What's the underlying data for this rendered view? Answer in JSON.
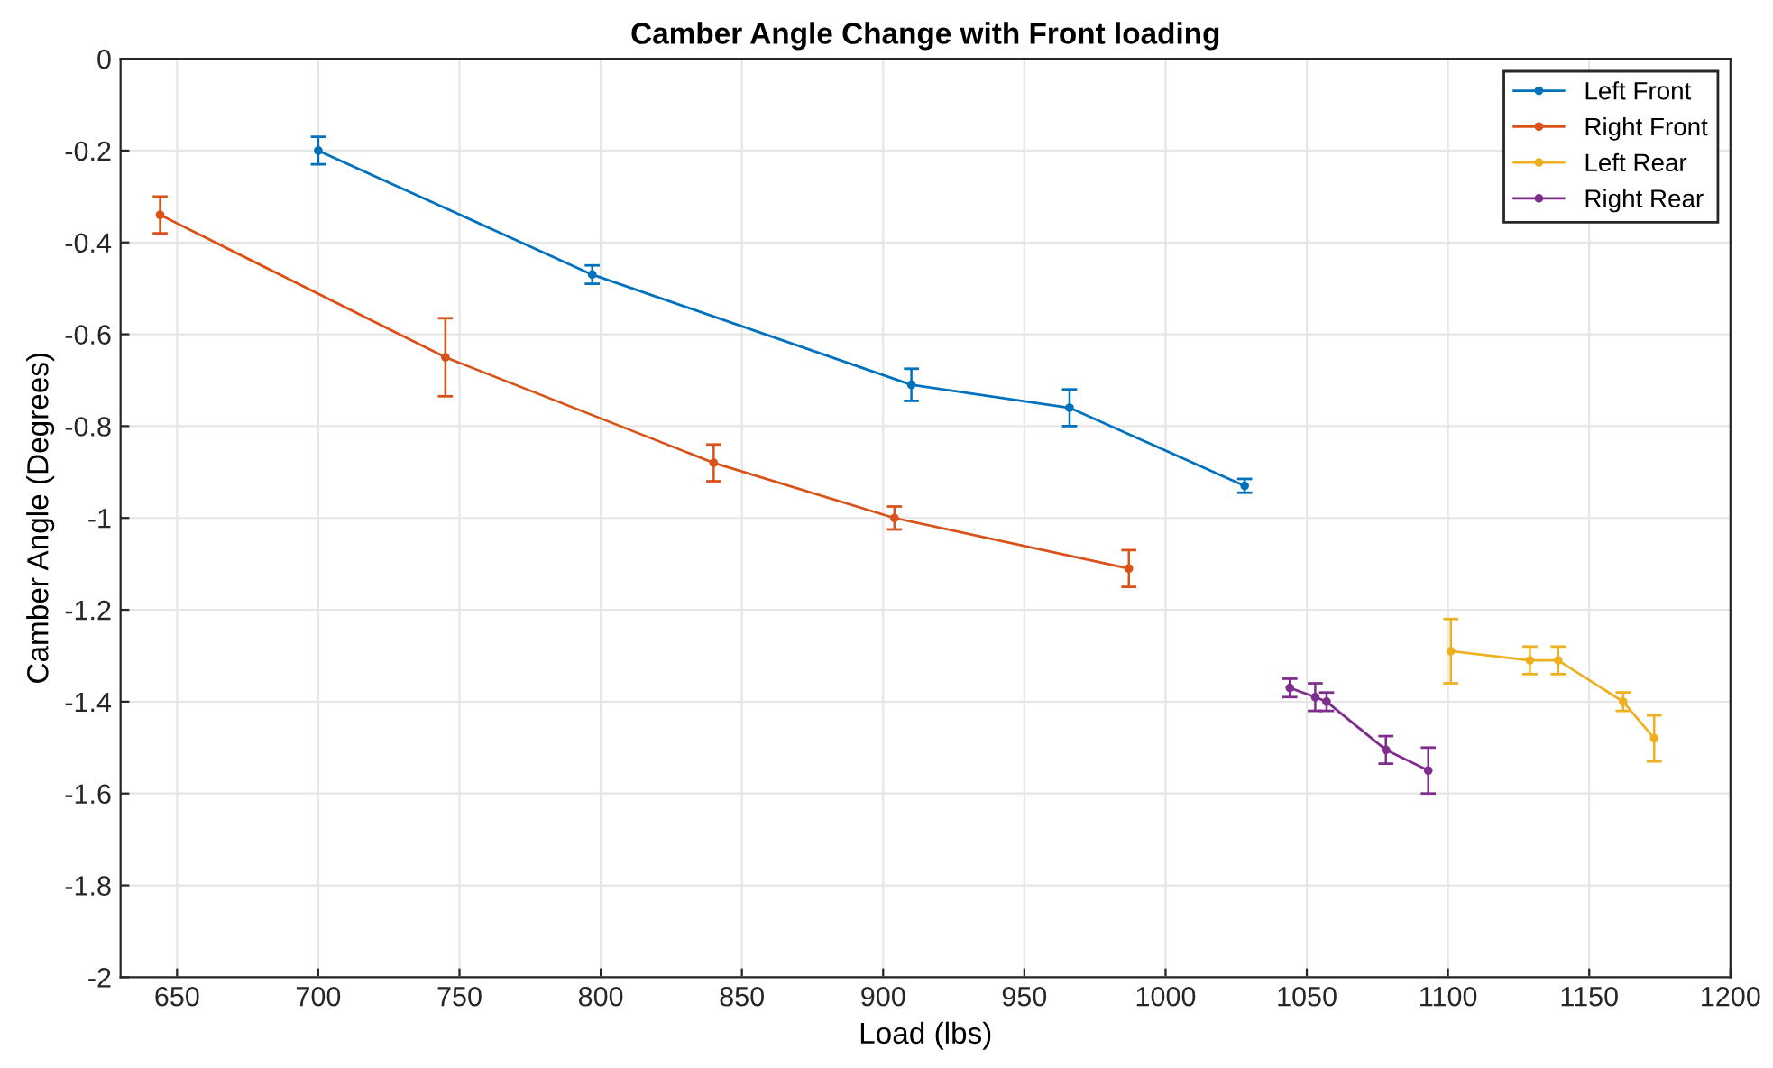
{
  "chart_data": {
    "type": "line",
    "title": "Camber Angle Change with Front loading",
    "xlabel": "Load (lbs)",
    "ylabel": "Camber Angle (Degrees)",
    "xlim": [
      630,
      1200
    ],
    "xticks": [
      650,
      700,
      750,
      800,
      850,
      900,
      950,
      1000,
      1050,
      1100,
      1150,
      1200
    ],
    "ylim": [
      -2,
      0
    ],
    "yticks": [
      {
        "value": -2,
        "label": "-2"
      },
      {
        "value": -1.8,
        "label": "-1.8"
      },
      {
        "value": -1.6,
        "label": "-1.6"
      },
      {
        "value": -1.4,
        "label": "-1.4"
      },
      {
        "value": -1.2,
        "label": "-1.2"
      },
      {
        "value": -1,
        "label": "-1"
      },
      {
        "value": -0.8,
        "label": "-0.8"
      },
      {
        "value": -0.6,
        "label": "-0.6"
      },
      {
        "value": -0.4,
        "label": "-0.4"
      },
      {
        "value": -0.2,
        "label": "-0.2"
      },
      {
        "value": 0,
        "label": "0"
      }
    ],
    "grid": true,
    "legend": "top right",
    "marker": "circle",
    "line_style": "solid",
    "series": [
      {
        "name": "Left Front",
        "color": "#0072bd",
        "x": [
          700,
          797,
          910,
          966,
          1028
        ],
        "values": [
          -0.2,
          -0.47,
          -0.71,
          -0.76,
          -0.93
        ],
        "errors": [
          0.03,
          0.02,
          0.035,
          0.04,
          0.015
        ]
      },
      {
        "name": "Right Front",
        "color": "#d95319",
        "x": [
          644,
          745,
          840,
          904,
          987
        ],
        "values": [
          -0.34,
          -0.65,
          -0.88,
          -1.0,
          -1.11
        ],
        "errors": [
          0.04,
          0.085,
          0.04,
          0.025,
          0.04
        ]
      },
      {
        "name": "Left Rear",
        "color": "#edb120",
        "x": [
          1101,
          1129,
          1139,
          1162,
          1173
        ],
        "values": [
          -1.29,
          -1.31,
          -1.31,
          -1.4,
          -1.48
        ],
        "errors": [
          0.07,
          0.03,
          0.03,
          0.02,
          0.05
        ]
      },
      {
        "name": "Right Rear",
        "color": "#7e2f8e",
        "x": [
          1044,
          1053,
          1057,
          1078,
          1093
        ],
        "values": [
          -1.37,
          -1.39,
          -1.4,
          -1.505,
          -1.55
        ],
        "errors": [
          0.02,
          0.03,
          0.02,
          0.03,
          0.05
        ]
      }
    ]
  }
}
